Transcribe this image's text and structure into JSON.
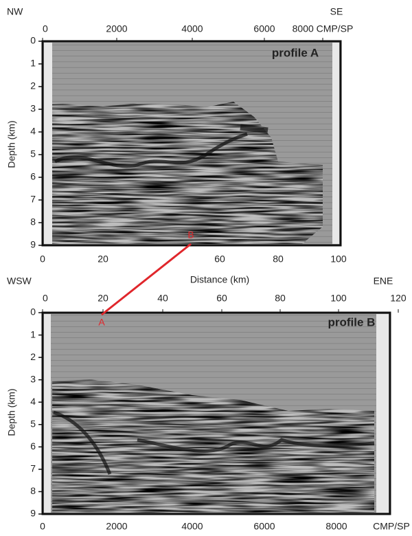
{
  "panel_a": {
    "label": "profile A",
    "left_title": "NW",
    "right_title": "SE",
    "top_axis": [
      "0",
      "2000",
      "4000",
      "6000",
      "8000 CMP/SP"
    ],
    "left_axis": [
      "0",
      "1",
      "2",
      "3",
      "4",
      "5",
      "6",
      "7",
      "8",
      "9"
    ],
    "y_label": "Depth (km)",
    "bottom_axis": [
      "0",
      "20",
      "60",
      "80",
      "100"
    ],
    "x_label": "Distance (km)",
    "marker": "B"
  },
  "panel_b": {
    "label": "profile B",
    "left_title": "WSW",
    "right_title": "ENE",
    "top_axis": [
      "0",
      "20",
      "40",
      "60",
      "80",
      "100",
      "120"
    ],
    "left_axis": [
      "0",
      "1",
      "2",
      "3",
      "4",
      "5",
      "6",
      "7",
      "8",
      "9"
    ],
    "y_label": "Depth (km)",
    "bottom_axis": [
      "0",
      "2000",
      "4000",
      "6000",
      "8000",
      "CMP/SP"
    ],
    "marker": "A"
  }
}
